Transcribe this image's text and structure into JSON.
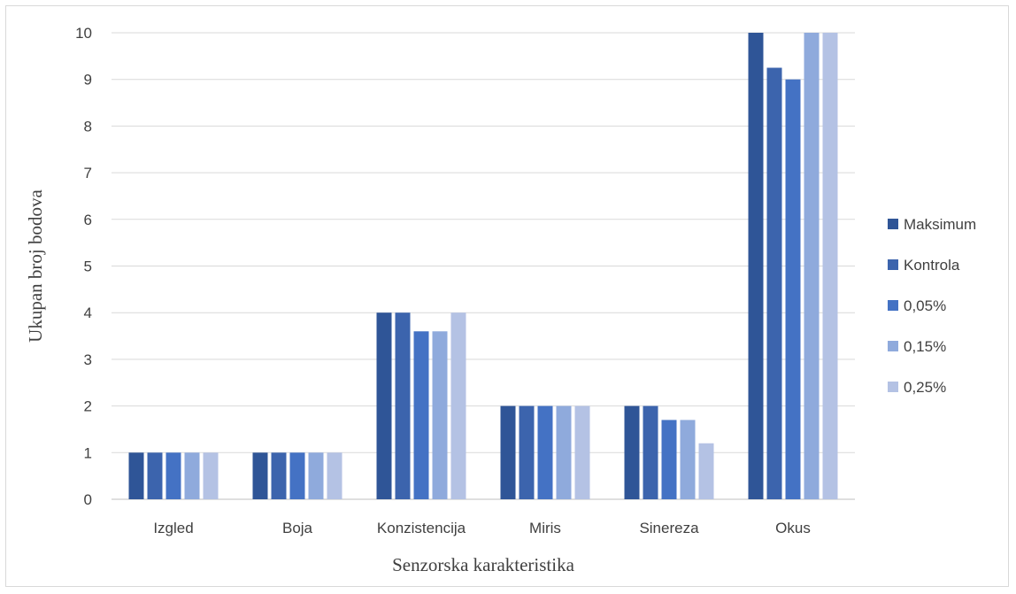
{
  "chart_data": {
    "type": "bar",
    "title": "",
    "xlabel": "Senzorska karakteristika",
    "ylabel": "Ukupan broj bodova",
    "ylim": [
      0,
      10
    ],
    "yticks": [
      0,
      1,
      2,
      3,
      4,
      5,
      6,
      7,
      8,
      9,
      10
    ],
    "grid": true,
    "legend_position": "right",
    "categories": [
      "Izgled",
      "Boja",
      "Konzistencija",
      "Miris",
      "Sinereza",
      "Okus"
    ],
    "series": [
      {
        "name": "Maksimum",
        "color": "#2f5597",
        "values": [
          1,
          1,
          4,
          2,
          2,
          10
        ]
      },
      {
        "name": "Kontrola",
        "color": "#3c64ad",
        "values": [
          1,
          1,
          4,
          2,
          2,
          9.25
        ]
      },
      {
        "name": "0,05%",
        "color": "#4472c4",
        "values": [
          1,
          1,
          3.6,
          2,
          1.7,
          9
        ]
      },
      {
        "name": "0,15%",
        "color": "#8faadc",
        "values": [
          1,
          1,
          3.6,
          2,
          1.7,
          10
        ]
      },
      {
        "name": "0,25%",
        "color": "#b4c2e4",
        "values": [
          1,
          1,
          4,
          2,
          1.2,
          10
        ]
      }
    ]
  }
}
